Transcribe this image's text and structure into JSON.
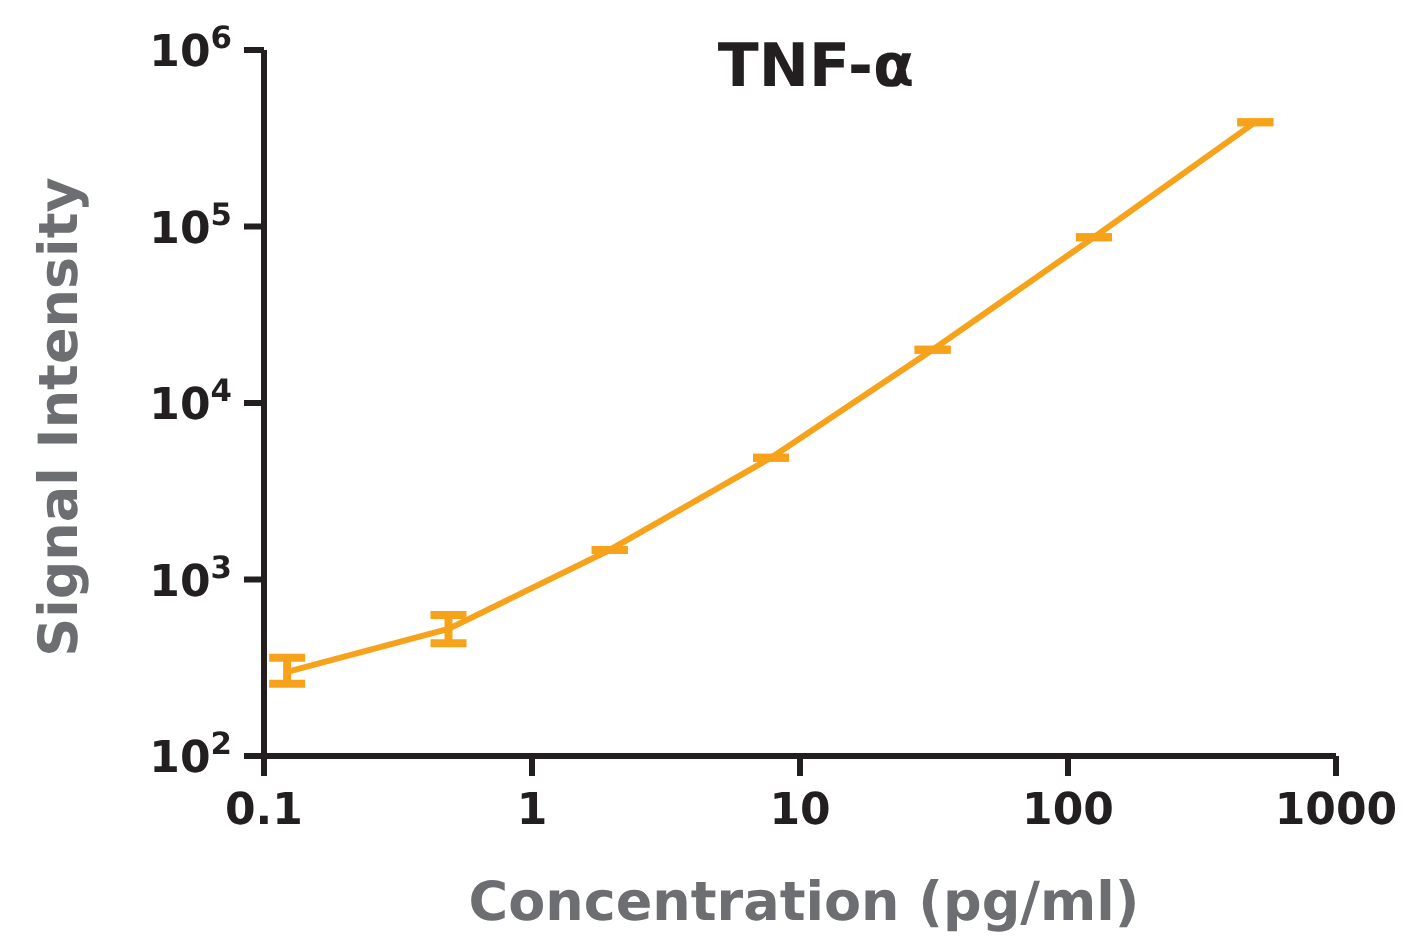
{
  "chart_data": {
    "type": "line",
    "title": "TNF-α",
    "xlabel": "Concentration (pg/ml)",
    "ylabel": "Signal Intensity",
    "log": "xy",
    "marker": "none",
    "line_style": "solid",
    "grid": false,
    "x": [
      0.122,
      0.488,
      1.95,
      7.8,
      31.25,
      125,
      500
    ],
    "series": [
      {
        "color": "#f7a21b",
        "values": [
          300,
          525,
          1470,
          4900,
          20000,
          87000,
          390000
        ],
        "errors": [
          [
            257,
            360
          ],
          [
            435,
            630
          ],
          null,
          null,
          null,
          null,
          null
        ]
      }
    ],
    "xlim": [
      0.1,
      1000
    ],
    "xticks": [
      0.1,
      1,
      10,
      100,
      1000
    ],
    "ylim": [
      100,
      1000000
    ],
    "yticks": [
      {
        "value": 100,
        "label": "10$^{2}$"
      },
      {
        "value": 1000,
        "label": "10$^{3}$"
      },
      {
        "value": 10000,
        "label": "10$^{4}$"
      },
      {
        "value": 100000,
        "label": "10$^{5}$"
      },
      {
        "value": 1000000,
        "label": "10$^{6}$"
      }
    ]
  }
}
